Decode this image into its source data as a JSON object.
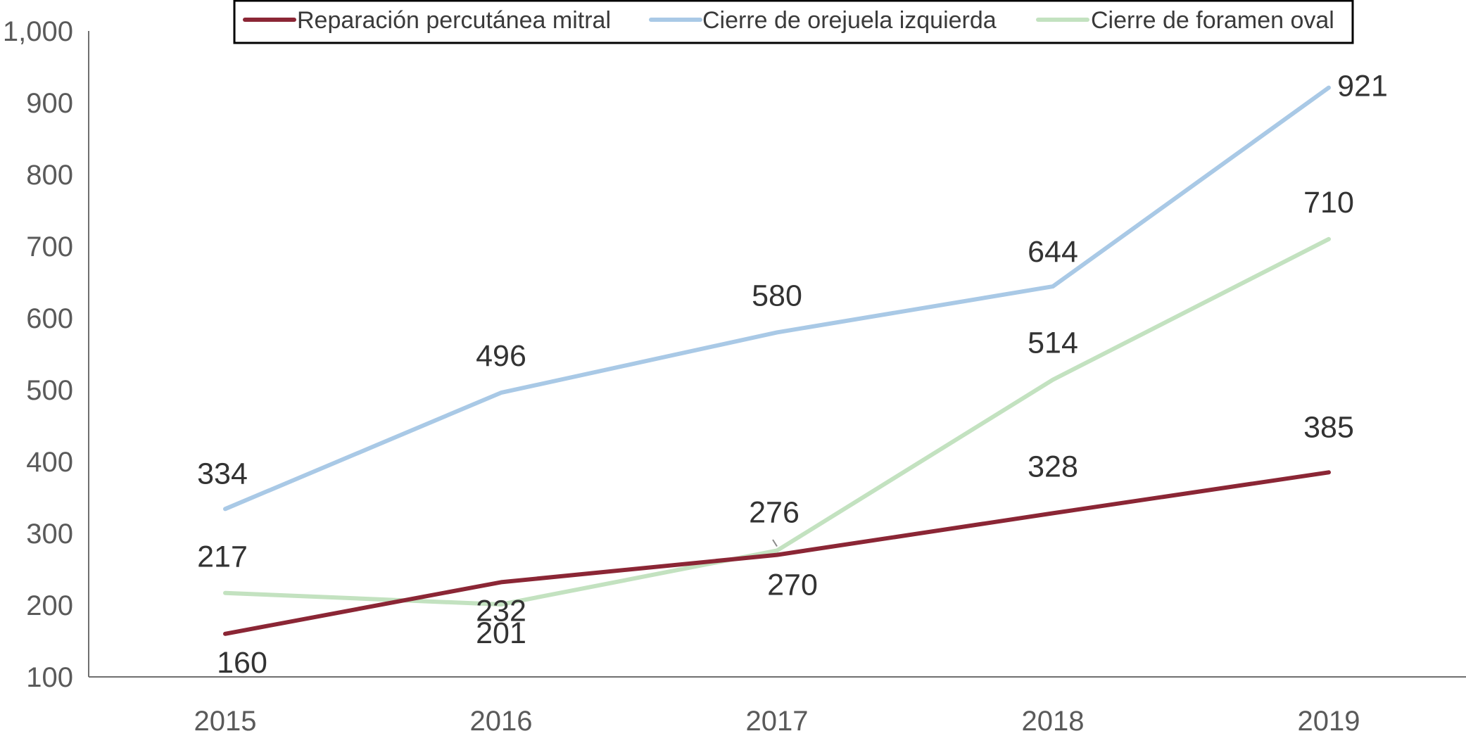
{
  "chart_data": {
    "type": "line",
    "categories": [
      "2015",
      "2016",
      "2017",
      "2018",
      "2019"
    ],
    "y_tick_labels": [
      "100",
      "200",
      "300",
      "400",
      "500",
      "600",
      "700",
      "800",
      "900",
      "1,000"
    ],
    "ylim": [
      100,
      1000
    ],
    "grid": false,
    "legend_position": "top-center",
    "series": [
      {
        "name": "Reparación percutánea mitral",
        "color": "#8b2635",
        "values": [
          160,
          232,
          270,
          328,
          385
        ],
        "labels": [
          "160",
          "232",
          "270",
          "328",
          "385"
        ]
      },
      {
        "name": "Cierre de orejuela izquierda",
        "color": "#a9c9e6",
        "values": [
          334,
          496,
          580,
          644,
          921
        ],
        "labels": [
          "334",
          "496",
          "580",
          "644",
          "921"
        ]
      },
      {
        "name": "Cierre de foramen oval",
        "color": "#c3e2c0",
        "values": [
          217,
          201,
          276,
          514,
          710
        ],
        "labels": [
          "217",
          "201",
          "276",
          "514",
          "710"
        ]
      }
    ]
  }
}
